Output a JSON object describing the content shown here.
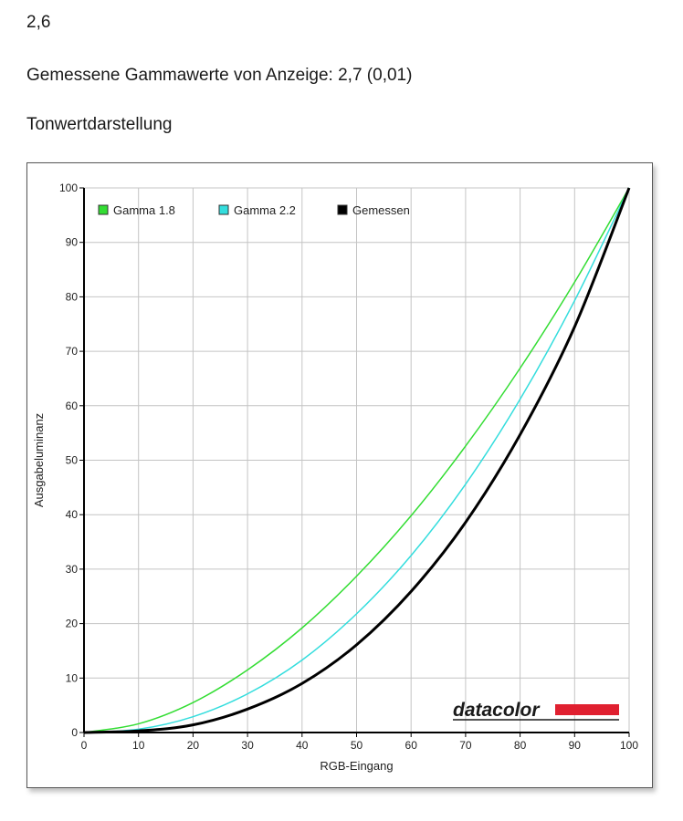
{
  "header": {
    "value": "2,6",
    "measured": "Gemessene Gammawerte von Anzeige: 2,7 (0,01)",
    "section": "Tonwertdarstellung"
  },
  "logo": {
    "text": "datacolor",
    "accent_color": "#e02030"
  },
  "chart_data": {
    "type": "line",
    "title": "",
    "xlabel": "RGB-Eingang",
    "ylabel": "Ausgabeluminanz",
    "xlim": [
      0,
      100
    ],
    "ylim": [
      0,
      100
    ],
    "xticks": [
      0,
      10,
      20,
      30,
      40,
      50,
      60,
      70,
      80,
      90,
      100
    ],
    "yticks": [
      0,
      10,
      20,
      30,
      40,
      50,
      60,
      70,
      80,
      90,
      100
    ],
    "grid": true,
    "legend_position": "top-left",
    "x": [
      0,
      10,
      20,
      30,
      40,
      50,
      60,
      70,
      80,
      90,
      100
    ],
    "series": [
      {
        "name": "Gamma 1.8",
        "color": "#33dd33",
        "values": [
          0,
          1.6,
          5.5,
          11.5,
          19.2,
          28.7,
          39.8,
          52.6,
          66.9,
          82.7,
          100
        ]
      },
      {
        "name": "Gamma 2.2",
        "color": "#33dddd",
        "values": [
          0,
          0.6,
          2.9,
          7.1,
          13.3,
          21.8,
          32.5,
          45.6,
          61.2,
          79.3,
          100
        ]
      },
      {
        "name": "Gemessen",
        "color": "#000000",
        "values": [
          0,
          0.3,
          1.4,
          4.3,
          9.0,
          16.1,
          25.9,
          38.6,
          54.7,
          74.5,
          100
        ]
      }
    ]
  }
}
